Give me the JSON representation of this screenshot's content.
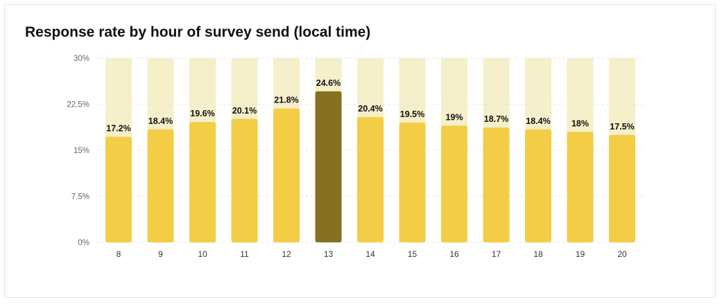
{
  "chart_data": {
    "type": "bar",
    "title": "Response rate by hour of survey send (local time)",
    "xlabel": "",
    "ylabel": "",
    "categories": [
      "8",
      "9",
      "10",
      "11",
      "12",
      "13",
      "14",
      "15",
      "16",
      "17",
      "18",
      "19",
      "20"
    ],
    "values": [
      17.2,
      18.4,
      19.6,
      20.1,
      21.8,
      24.6,
      20.4,
      19.5,
      19,
      18.7,
      18.4,
      18,
      17.5
    ],
    "value_labels": [
      "17.2%",
      "18.4%",
      "19.6%",
      "20.1%",
      "21.8%",
      "24.6%",
      "20.4%",
      "19.5%",
      "19%",
      "18.7%",
      "18.4%",
      "18%",
      "17.5%"
    ],
    "ylim": [
      0,
      30
    ],
    "y_ticks": [
      0,
      7.5,
      15,
      22.5,
      30
    ],
    "y_tick_labels": [
      "0%",
      "7.5%",
      "15%",
      "22.5%",
      "30%"
    ],
    "highlight_index": 5,
    "grid": true,
    "legend": false,
    "colors": {
      "bar": "#f2cd45",
      "bar_highlight": "#857120",
      "background_track": "#f5efca",
      "gridline": "#e4e4e4"
    }
  }
}
